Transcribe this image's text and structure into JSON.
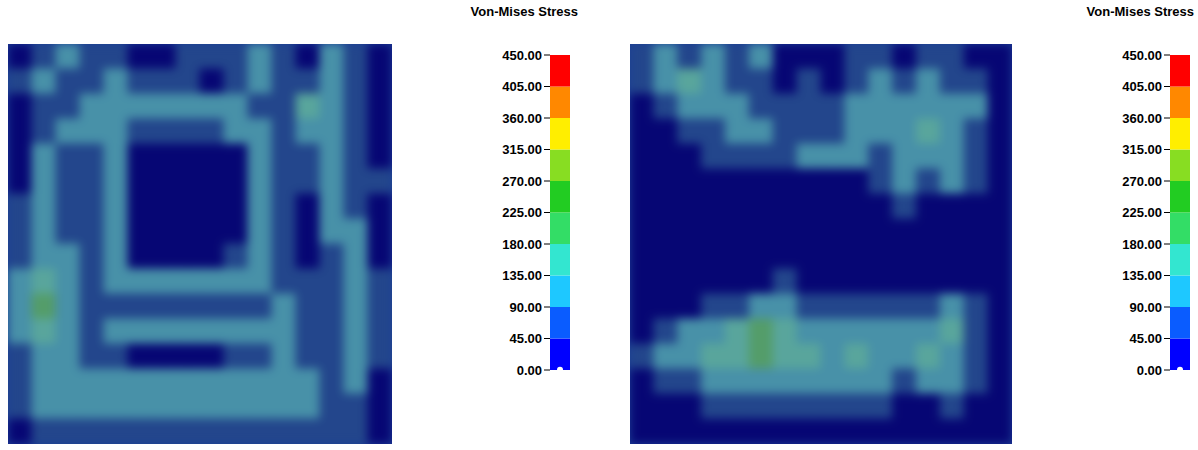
{
  "chart_data": [
    {
      "type": "heatmap",
      "title": "Von-Mises Stress",
      "tick_labels": false,
      "cells": [
        [
          20,
          65,
          110,
          65,
          65,
          20,
          20,
          65,
          65,
          65,
          110,
          65,
          20,
          110,
          65,
          20
        ],
        [
          65,
          110,
          65,
          65,
          110,
          65,
          65,
          65,
          20,
          65,
          110,
          65,
          65,
          110,
          65,
          20
        ],
        [
          20,
          65,
          65,
          110,
          110,
          110,
          110,
          110,
          110,
          110,
          65,
          65,
          155,
          110,
          65,
          20
        ],
        [
          20,
          65,
          110,
          110,
          110,
          65,
          65,
          65,
          65,
          110,
          110,
          65,
          110,
          110,
          65,
          20
        ],
        [
          20,
          110,
          65,
          65,
          110,
          20,
          20,
          20,
          20,
          20,
          110,
          65,
          65,
          110,
          65,
          20
        ],
        [
          20,
          110,
          65,
          65,
          110,
          20,
          20,
          20,
          20,
          20,
          110,
          65,
          65,
          110,
          65,
          65
        ],
        [
          65,
          110,
          65,
          65,
          110,
          20,
          20,
          20,
          20,
          20,
          110,
          65,
          20,
          110,
          65,
          20
        ],
        [
          65,
          110,
          65,
          65,
          110,
          20,
          20,
          20,
          20,
          20,
          110,
          65,
          20,
          110,
          110,
          20
        ],
        [
          65,
          110,
          110,
          65,
          110,
          20,
          20,
          20,
          20,
          65,
          110,
          65,
          20,
          65,
          110,
          20
        ],
        [
          110,
          155,
          110,
          65,
          110,
          110,
          110,
          110,
          110,
          110,
          110,
          65,
          65,
          65,
          110,
          65
        ],
        [
          110,
          195,
          110,
          65,
          65,
          65,
          65,
          65,
          65,
          65,
          65,
          110,
          65,
          65,
          110,
          65
        ],
        [
          110,
          155,
          110,
          65,
          110,
          110,
          110,
          110,
          110,
          110,
          110,
          110,
          65,
          65,
          110,
          65
        ],
        [
          65,
          110,
          110,
          65,
          65,
          20,
          20,
          20,
          20,
          65,
          65,
          110,
          65,
          65,
          110,
          65
        ],
        [
          65,
          110,
          110,
          110,
          110,
          110,
          110,
          110,
          110,
          110,
          110,
          110,
          110,
          65,
          110,
          20
        ],
        [
          65,
          110,
          110,
          110,
          110,
          110,
          110,
          110,
          110,
          110,
          110,
          110,
          110,
          65,
          65,
          20
        ],
        [
          20,
          65,
          65,
          65,
          65,
          65,
          65,
          65,
          65,
          65,
          65,
          65,
          65,
          65,
          65,
          20
        ]
      ],
      "colorbar": {
        "range": [
          0,
          450
        ],
        "ticks": [
          {
            "value": 0,
            "label": "0.00"
          },
          {
            "value": 45,
            "label": "45.00"
          },
          {
            "value": 90,
            "label": "90.00"
          },
          {
            "value": 135,
            "label": "135.00"
          },
          {
            "value": 180,
            "label": "180.00"
          },
          {
            "value": 225,
            "label": "225.00"
          },
          {
            "value": 270,
            "label": "270.00"
          },
          {
            "value": 315,
            "label": "315.00"
          },
          {
            "value": 360,
            "label": "360.00"
          },
          {
            "value": 405,
            "label": "405.00"
          },
          {
            "value": 450,
            "label": "450.00"
          }
        ],
        "colors": [
          "#0000ff",
          "#0a5cff",
          "#1ec8ff",
          "#33e6d0",
          "#33dd66",
          "#22cc22",
          "#88dd22",
          "#ffee00",
          "#ff8800",
          "#ff0000"
        ]
      }
    },
    {
      "type": "heatmap",
      "title": "Von-Mises Stress",
      "tick_labels": false,
      "cells": [
        [
          65,
          110,
          65,
          110,
          65,
          110,
          20,
          20,
          20,
          65,
          65,
          20,
          65,
          65,
          20,
          20
        ],
        [
          65,
          110,
          155,
          110,
          65,
          65,
          20,
          65,
          20,
          65,
          110,
          65,
          110,
          65,
          65,
          20
        ],
        [
          20,
          65,
          110,
          110,
          110,
          65,
          65,
          65,
          65,
          110,
          110,
          110,
          110,
          110,
          110,
          20
        ],
        [
          20,
          20,
          65,
          65,
          110,
          110,
          65,
          65,
          65,
          110,
          110,
          110,
          155,
          110,
          65,
          20
        ],
        [
          20,
          20,
          20,
          65,
          65,
          65,
          65,
          110,
          110,
          110,
          65,
          110,
          110,
          110,
          65,
          20
        ],
        [
          20,
          20,
          20,
          20,
          20,
          20,
          20,
          20,
          20,
          20,
          65,
          110,
          65,
          110,
          65,
          20
        ],
        [
          20,
          20,
          20,
          20,
          20,
          20,
          20,
          20,
          20,
          20,
          20,
          65,
          20,
          20,
          20,
          20
        ],
        [
          20,
          20,
          20,
          20,
          20,
          20,
          20,
          20,
          20,
          20,
          20,
          20,
          20,
          20,
          20,
          20
        ],
        [
          20,
          20,
          20,
          20,
          20,
          20,
          20,
          20,
          20,
          20,
          20,
          20,
          20,
          20,
          20,
          20
        ],
        [
          20,
          20,
          20,
          20,
          20,
          20,
          65,
          20,
          20,
          20,
          20,
          20,
          20,
          20,
          20,
          20
        ],
        [
          20,
          20,
          20,
          65,
          65,
          110,
          110,
          65,
          65,
          65,
          65,
          65,
          65,
          110,
          65,
          20
        ],
        [
          20,
          65,
          110,
          110,
          155,
          195,
          155,
          110,
          110,
          110,
          110,
          110,
          110,
          155,
          65,
          20
        ],
        [
          65,
          110,
          110,
          155,
          155,
          195,
          155,
          155,
          110,
          155,
          110,
          110,
          155,
          110,
          65,
          20
        ],
        [
          20,
          65,
          65,
          110,
          110,
          110,
          110,
          110,
          110,
          110,
          110,
          65,
          110,
          110,
          65,
          20
        ],
        [
          20,
          20,
          20,
          65,
          65,
          65,
          65,
          65,
          65,
          65,
          65,
          20,
          20,
          65,
          20,
          20
        ],
        [
          20,
          20,
          20,
          20,
          20,
          20,
          20,
          20,
          20,
          20,
          20,
          20,
          20,
          20,
          20,
          20
        ]
      ],
      "colorbar": {
        "range": [
          0,
          450
        ],
        "ticks": [
          {
            "value": 0,
            "label": "0.00"
          },
          {
            "value": 45,
            "label": "45.00"
          },
          {
            "value": 90,
            "label": "90.00"
          },
          {
            "value": 135,
            "label": "135.00"
          },
          {
            "value": 180,
            "label": "180.00"
          },
          {
            "value": 225,
            "label": "225.00"
          },
          {
            "value": 270,
            "label": "270.00"
          },
          {
            "value": 315,
            "label": "315.00"
          },
          {
            "value": 360,
            "label": "360.00"
          },
          {
            "value": 405,
            "label": "405.00"
          },
          {
            "value": 450,
            "label": "450.00"
          }
        ],
        "colors": [
          "#0000ff",
          "#0a5cff",
          "#1ec8ff",
          "#33e6d0",
          "#33dd66",
          "#22cc22",
          "#88dd22",
          "#ffee00",
          "#ff8800",
          "#ff0000"
        ]
      }
    }
  ]
}
